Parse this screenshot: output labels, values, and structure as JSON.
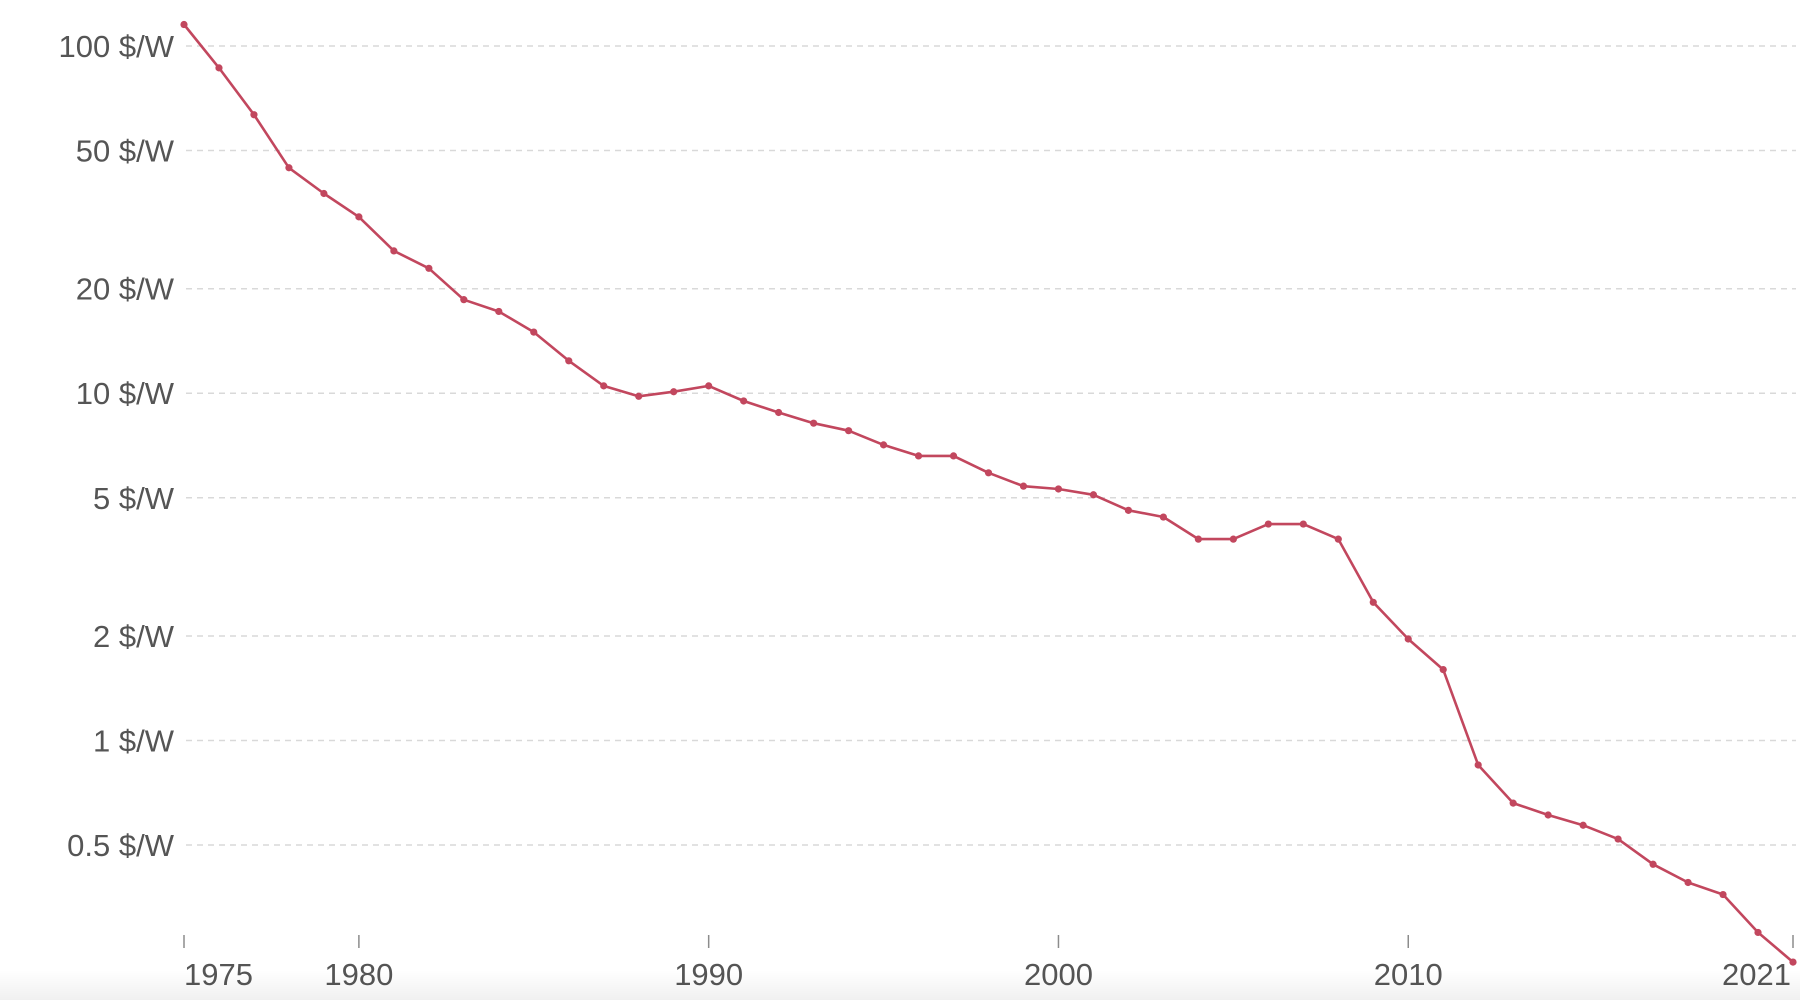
{
  "chart_data": {
    "type": "line",
    "y_scale": "log",
    "grid": true,
    "line_color": "#c2475e",
    "xlim": [
      1975,
      2021
    ],
    "ylim": [
      0.28,
      125
    ],
    "y_ticks": [
      {
        "value": 100,
        "label": "100 $/W"
      },
      {
        "value": 50,
        "label": "50 $/W"
      },
      {
        "value": 20,
        "label": "20 $/W"
      },
      {
        "value": 10,
        "label": "10 $/W"
      },
      {
        "value": 5,
        "label": "5 $/W"
      },
      {
        "value": 2,
        "label": "2 $/W"
      },
      {
        "value": 1,
        "label": "1 $/W"
      },
      {
        "value": 0.5,
        "label": "0.5 $/W"
      }
    ],
    "x_ticks": [
      {
        "value": 1975,
        "label": "1975"
      },
      {
        "value": 1980,
        "label": "1980"
      },
      {
        "value": 1990,
        "label": "1990"
      },
      {
        "value": 2000,
        "label": "2000"
      },
      {
        "value": 2010,
        "label": "2010"
      },
      {
        "value": 2021,
        "label": "2021"
      }
    ],
    "x": [
      1975,
      1976,
      1977,
      1978,
      1979,
      1980,
      1981,
      1982,
      1983,
      1984,
      1985,
      1986,
      1987,
      1988,
      1989,
      1990,
      1991,
      1992,
      1993,
      1994,
      1995,
      1996,
      1997,
      1998,
      1999,
      2000,
      2001,
      2002,
      2003,
      2004,
      2005,
      2006,
      2007,
      2008,
      2009,
      2010,
      2011,
      2012,
      2013,
      2014,
      2015,
      2016,
      2017,
      2018,
      2019,
      2020,
      2021
    ],
    "values": [
      115.3,
      86.5,
      63.4,
      44.6,
      37.6,
      32.2,
      25.7,
      22.9,
      18.6,
      17.2,
      15.0,
      12.4,
      10.5,
      9.8,
      10.1,
      10.5,
      9.5,
      8.8,
      8.2,
      7.8,
      7.1,
      6.6,
      6.6,
      5.9,
      5.4,
      5.3,
      5.1,
      4.6,
      4.4,
      3.8,
      3.8,
      4.2,
      4.2,
      3.8,
      2.5,
      1.96,
      1.6,
      0.85,
      0.66,
      0.61,
      0.57,
      0.52,
      0.44,
      0.39,
      0.36,
      0.28,
      0.23
    ]
  }
}
